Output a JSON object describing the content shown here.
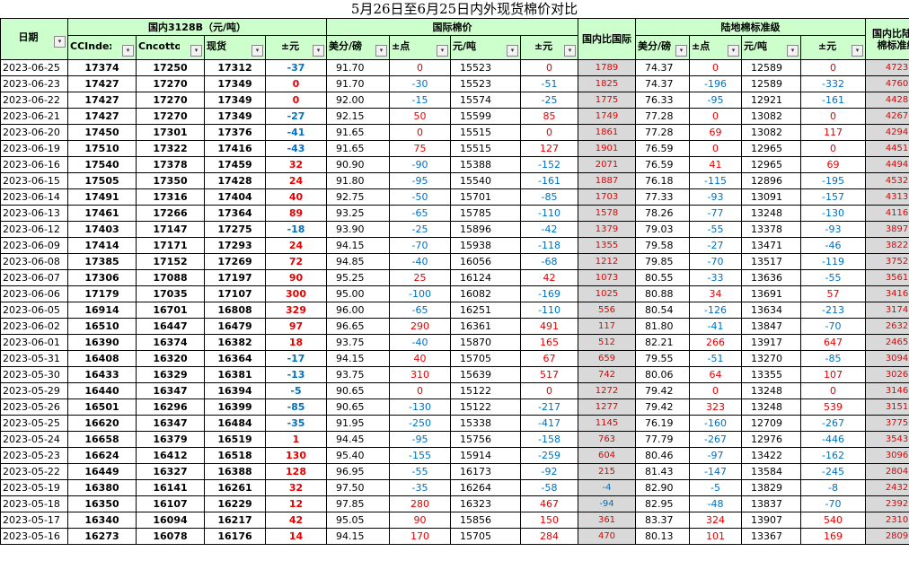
{
  "title": "5月26日至6月25日内外现货棉价对比",
  "groups": {
    "domestic": "国内3128B（元/吨）",
    "intl": "国际棉价",
    "cmp1": "国内比国际",
    "land": "陆地棉标准级",
    "cmp2": "国内比陆地棉标准级"
  },
  "headers": [
    "日期",
    "CCIndex",
    "Cncotton",
    "现货",
    "±元",
    "美分/磅",
    "±点",
    "元/吨",
    "±元",
    "美分/磅",
    "±点",
    "元/吨",
    "±元"
  ],
  "rows": [
    [
      "2023-06-25",
      "17374",
      "17250",
      "17312",
      "-37",
      "91.70",
      "0",
      "15523",
      "0",
      "1789",
      "74.37",
      "0",
      "12589",
      "0",
      "4723"
    ],
    [
      "2023-06-23",
      "17427",
      "17270",
      "17349",
      "0",
      "91.70",
      "-30",
      "15523",
      "-51",
      "1825",
      "74.37",
      "-196",
      "12589",
      "-332",
      "4760"
    ],
    [
      "2023-06-22",
      "17427",
      "17270",
      "17349",
      "0",
      "92.00",
      "-15",
      "15574",
      "-25",
      "1775",
      "76.33",
      "-95",
      "12921",
      "-161",
      "4428"
    ],
    [
      "2023-06-21",
      "17427",
      "17270",
      "17349",
      "-27",
      "92.15",
      "50",
      "15599",
      "85",
      "1749",
      "77.28",
      "0",
      "13082",
      "0",
      "4267"
    ],
    [
      "2023-06-20",
      "17450",
      "17301",
      "17376",
      "-41",
      "91.65",
      "0",
      "15515",
      "0",
      "1861",
      "77.28",
      "69",
      "13082",
      "117",
      "4294"
    ],
    [
      "2023-06-19",
      "17510",
      "17322",
      "17416",
      "-43",
      "91.65",
      "75",
      "15515",
      "127",
      "1901",
      "76.59",
      "0",
      "12965",
      "0",
      "4451"
    ],
    [
      "2023-06-16",
      "17540",
      "17378",
      "17459",
      "32",
      "90.90",
      "-90",
      "15388",
      "-152",
      "2071",
      "76.59",
      "41",
      "12965",
      "69",
      "4494"
    ],
    [
      "2023-06-15",
      "17505",
      "17350",
      "17428",
      "24",
      "91.80",
      "-95",
      "15540",
      "-161",
      "1887",
      "76.18",
      "-115",
      "12896",
      "-195",
      "4532"
    ],
    [
      "2023-06-14",
      "17491",
      "17316",
      "17404",
      "40",
      "92.75",
      "-50",
      "15701",
      "-85",
      "1703",
      "77.33",
      "-93",
      "13091",
      "-157",
      "4313"
    ],
    [
      "2023-06-13",
      "17461",
      "17266",
      "17364",
      "89",
      "93.25",
      "-65",
      "15785",
      "-110",
      "1578",
      "78.26",
      "-77",
      "13248",
      "-130",
      "4116"
    ],
    [
      "2023-06-12",
      "17403",
      "17147",
      "17275",
      "-18",
      "93.90",
      "-25",
      "15896",
      "-42",
      "1379",
      "79.03",
      "-55",
      "13378",
      "-93",
      "3897"
    ],
    [
      "2023-06-09",
      "17414",
      "17171",
      "17293",
      "24",
      "94.15",
      "-70",
      "15938",
      "-118",
      "1355",
      "79.58",
      "-27",
      "13471",
      "-46",
      "3822"
    ],
    [
      "2023-06-08",
      "17385",
      "17152",
      "17269",
      "72",
      "94.85",
      "-40",
      "16056",
      "-68",
      "1212",
      "79.85",
      "-70",
      "13517",
      "-119",
      "3752"
    ],
    [
      "2023-06-07",
      "17306",
      "17088",
      "17197",
      "90",
      "95.25",
      "25",
      "16124",
      "42",
      "1073",
      "80.55",
      "-33",
      "13636",
      "-55",
      "3561"
    ],
    [
      "2023-06-06",
      "17179",
      "17035",
      "17107",
      "300",
      "95.00",
      "-100",
      "16082",
      "-169",
      "1025",
      "80.88",
      "34",
      "13691",
      "57",
      "3416"
    ],
    [
      "2023-06-05",
      "16914",
      "16701",
      "16808",
      "329",
      "96.00",
      "-65",
      "16251",
      "-110",
      "556",
      "80.54",
      "-126",
      "13634",
      "-213",
      "3174"
    ],
    [
      "2023-06-02",
      "16510",
      "16447",
      "16479",
      "97",
      "96.65",
      "290",
      "16361",
      "491",
      "117",
      "81.80",
      "-41",
      "13847",
      "-70",
      "2632"
    ],
    [
      "2023-06-01",
      "16390",
      "16374",
      "16382",
      "18",
      "93.75",
      "-40",
      "15870",
      "165",
      "512",
      "82.21",
      "266",
      "13917",
      "647",
      "2465"
    ],
    [
      "2023-05-31",
      "16408",
      "16320",
      "16364",
      "-17",
      "94.15",
      "40",
      "15705",
      "67",
      "659",
      "79.55",
      "-51",
      "13270",
      "-85",
      "3094"
    ],
    [
      "2023-05-30",
      "16433",
      "16329",
      "16381",
      "-13",
      "93.75",
      "310",
      "15639",
      "517",
      "742",
      "80.06",
      "64",
      "13355",
      "107",
      "3026"
    ],
    [
      "2023-05-29",
      "16440",
      "16347",
      "16394",
      "-5",
      "90.65",
      "0",
      "15122",
      "0",
      "1272",
      "79.42",
      "0",
      "13248",
      "0",
      "3146"
    ],
    [
      "2023-05-26",
      "16501",
      "16296",
      "16399",
      "-85",
      "90.65",
      "-130",
      "15122",
      "-217",
      "1277",
      "79.42",
      "323",
      "13248",
      "539",
      "3151"
    ],
    [
      "2023-05-25",
      "16620",
      "16347",
      "16484",
      "-35",
      "91.95",
      "-250",
      "15338",
      "-417",
      "1145",
      "76.19",
      "-160",
      "12709",
      "-267",
      "3775"
    ],
    [
      "2023-05-24",
      "16658",
      "16379",
      "16519",
      "1",
      "94.45",
      "-95",
      "15756",
      "-158",
      "763",
      "77.79",
      "-267",
      "12976",
      "-446",
      "3543"
    ],
    [
      "2023-05-23",
      "16624",
      "16412",
      "16518",
      "130",
      "95.40",
      "-155",
      "15914",
      "-259",
      "604",
      "80.46",
      "-97",
      "13422",
      "-162",
      "3096"
    ],
    [
      "2023-05-22",
      "16449",
      "16327",
      "16388",
      "128",
      "96.95",
      "-55",
      "16173",
      "-92",
      "215",
      "81.43",
      "-147",
      "13584",
      "-245",
      "2804"
    ],
    [
      "2023-05-19",
      "16380",
      "16141",
      "16261",
      "32",
      "97.50",
      "-35",
      "16264",
      "-58",
      "-4",
      "82.90",
      "-5",
      "13829",
      "-8",
      "2432"
    ],
    [
      "2023-05-18",
      "16350",
      "16107",
      "16229",
      "12",
      "97.85",
      "280",
      "16323",
      "467",
      "-94",
      "82.95",
      "-48",
      "13837",
      "-70",
      "2392"
    ],
    [
      "2023-05-17",
      "16340",
      "16094",
      "16217",
      "42",
      "95.05",
      "90",
      "15856",
      "150",
      "361",
      "83.37",
      "324",
      "13907",
      "540",
      "2310"
    ],
    [
      "2023-05-16",
      "16273",
      "16078",
      "16176",
      "14",
      "94.15",
      "170",
      "15705",
      "284",
      "470",
      "80.13",
      "101",
      "13367",
      "169",
      "2809"
    ]
  ]
}
